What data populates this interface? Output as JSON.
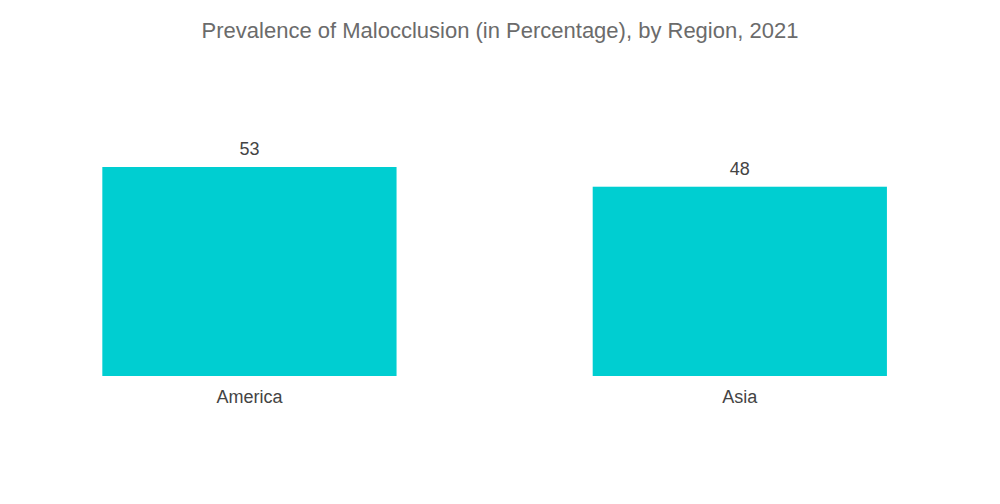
{
  "chart_data": {
    "type": "bar",
    "title": "Prevalence of Malocclusion (in Percentage), by Region, 2021",
    "categories": [
      "America",
      "Asia"
    ],
    "values": [
      53,
      48
    ],
    "color": "#00ced1",
    "ylim": [
      0,
      60
    ],
    "data_labels": true,
    "tick_labels": "x",
    "grid": false
  }
}
